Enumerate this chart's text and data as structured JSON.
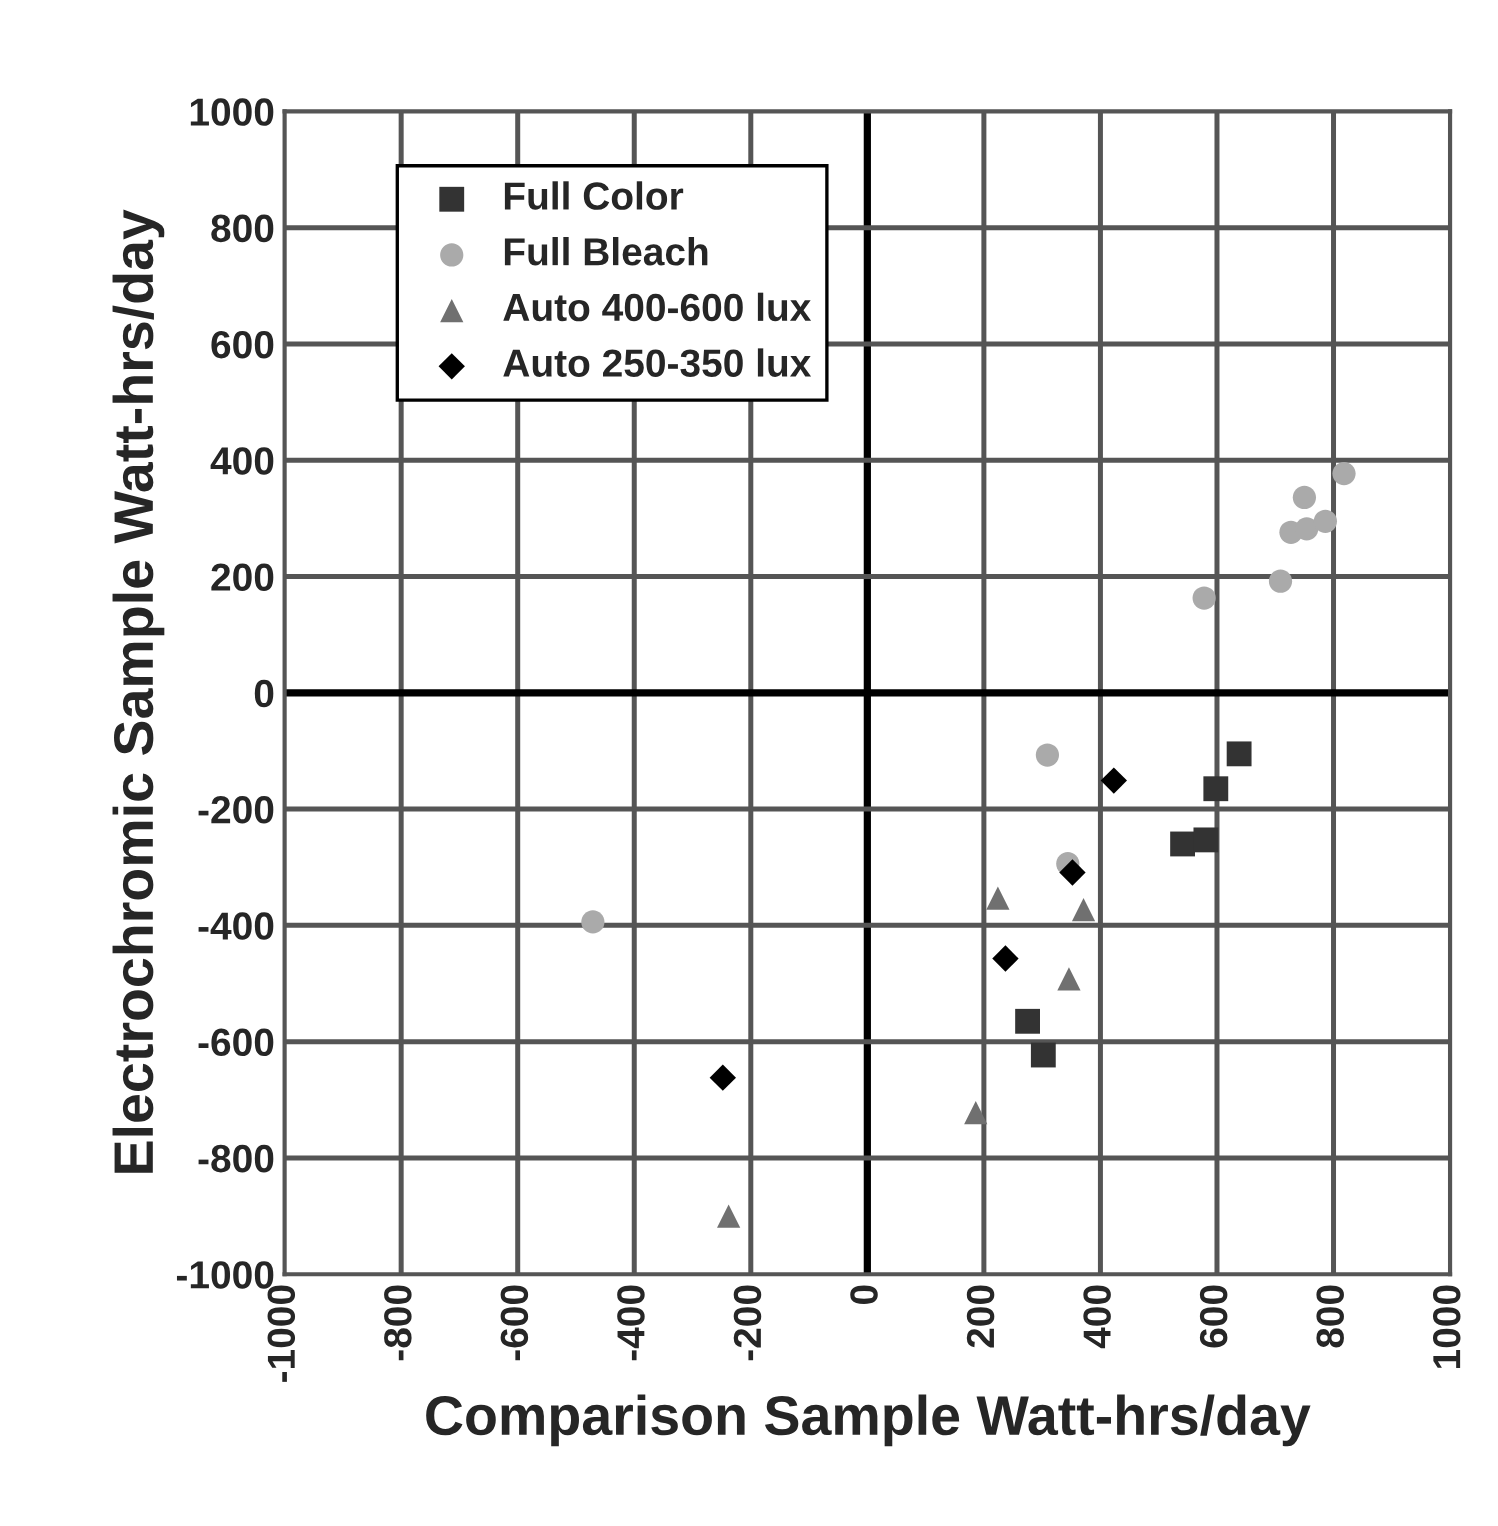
{
  "chart_data": {
    "type": "scatter",
    "xlabel": "Comparison Sample Watt-hrs/day",
    "ylabel": "Electrochromic Sample Watt-hrs/day",
    "xlim": [
      -1000,
      1000
    ],
    "ylim": [
      -1000,
      1000
    ],
    "xticks": [
      -1000,
      -800,
      -600,
      -400,
      -200,
      0,
      200,
      400,
      600,
      800,
      1000
    ],
    "yticks": [
      -1000,
      -800,
      -600,
      -400,
      -200,
      0,
      200,
      400,
      600,
      800,
      1000
    ],
    "grid": true,
    "legend": "top left",
    "series": [
      {
        "name": "Full Color",
        "color": "#333333",
        "marker": "square",
        "x": [
          638,
          598,
          541,
          581,
          275,
          302
        ],
        "values": [
          -105,
          -165,
          -260,
          -253,
          -565,
          -623
        ]
      },
      {
        "name": "Full Bleach",
        "color": "#aaaaaa",
        "marker": "circle",
        "x": [
          309,
          344,
          -471,
          818,
          750,
          727,
          754,
          786,
          709,
          578
        ],
        "values": [
          -107,
          -294,
          -394,
          377,
          336,
          276,
          282,
          295,
          192,
          163
        ]
      },
      {
        "name": "Auto 400-600 lux",
        "color": "#707070",
        "marker": "triangle",
        "x": [
          224,
          371,
          346,
          186,
          -238
        ],
        "values": [
          -353,
          -373,
          -492,
          -722,
          -900
        ]
      },
      {
        "name": "Auto 250-350 lux",
        "color": "#000000",
        "marker": "diamond",
        "x": [
          423,
          352,
          237,
          -248
        ],
        "values": [
          -151,
          -309,
          -457,
          -662
        ]
      }
    ]
  }
}
